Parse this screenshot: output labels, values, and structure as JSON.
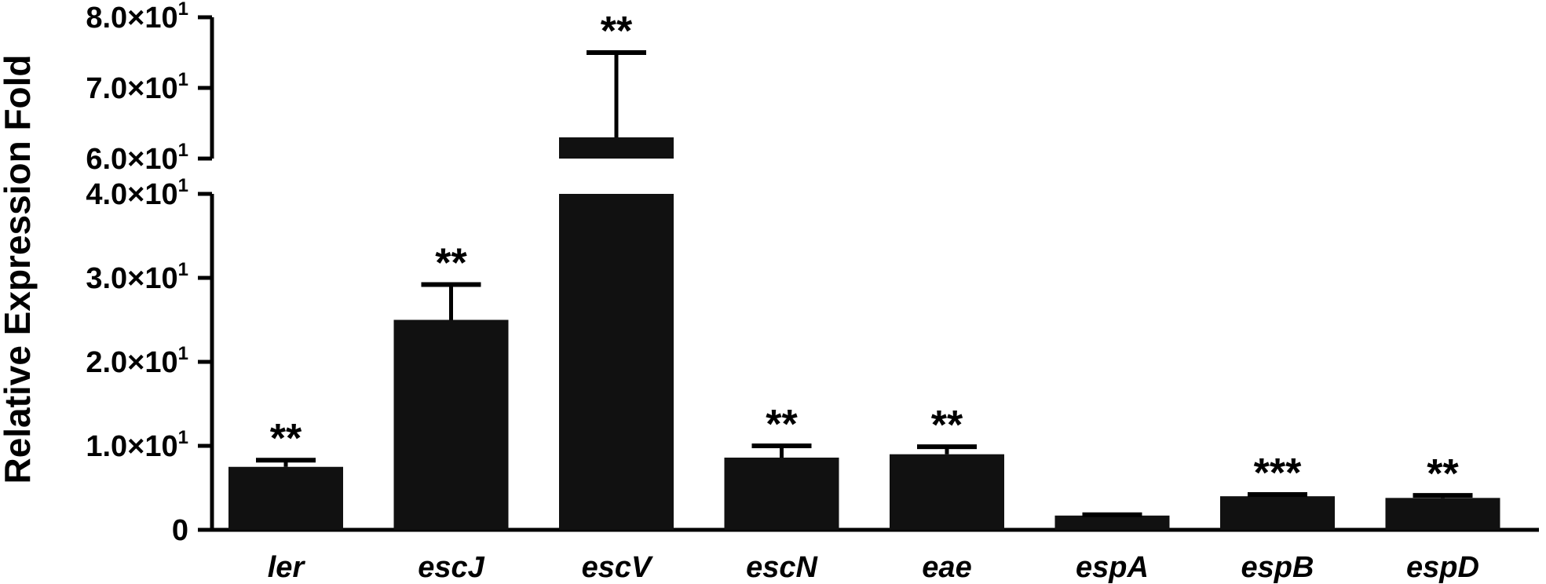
{
  "chart_data": {
    "type": "bar",
    "ylabel": "Relative Expression Fold",
    "xlabel": "",
    "ylim": [
      0,
      80
    ],
    "y_axis_break": [
      40,
      60
    ],
    "yticks": [
      {
        "value": 0,
        "label": "0",
        "mant": "0",
        "exp": ""
      },
      {
        "value": 10,
        "label": "1.0×10¹",
        "mant": "1.0×10",
        "exp": "1"
      },
      {
        "value": 20,
        "label": "2.0×10¹",
        "mant": "2.0×10",
        "exp": "1"
      },
      {
        "value": 30,
        "label": "3.0×10¹",
        "mant": "3.0×10",
        "exp": "1"
      },
      {
        "value": 40,
        "label": "4.0×10¹",
        "mant": "4.0×10",
        "exp": "1"
      },
      {
        "value": 60,
        "label": "6.0×10¹",
        "mant": "6.0×10",
        "exp": "1"
      },
      {
        "value": 70,
        "label": "7.0×10¹",
        "mant": "7.0×10",
        "exp": "1"
      },
      {
        "value": 80,
        "label": "8.0×10¹",
        "mant": "8.0×10",
        "exp": "1"
      }
    ],
    "categories": [
      "ler",
      "escJ",
      "escV",
      "escN",
      "eae",
      "espA",
      "espB",
      "espD"
    ],
    "values": [
      7.5,
      25.0,
      63.0,
      8.6,
      9.0,
      1.7,
      4.0,
      3.8
    ],
    "errors": [
      0.8,
      4.2,
      12.0,
      1.4,
      0.9,
      0.1,
      0.2,
      0.3
    ],
    "significance": [
      "**",
      "**",
      "**",
      "**",
      "**",
      "",
      "***",
      "**"
    ],
    "bar_color": "#111111",
    "grid": false
  }
}
